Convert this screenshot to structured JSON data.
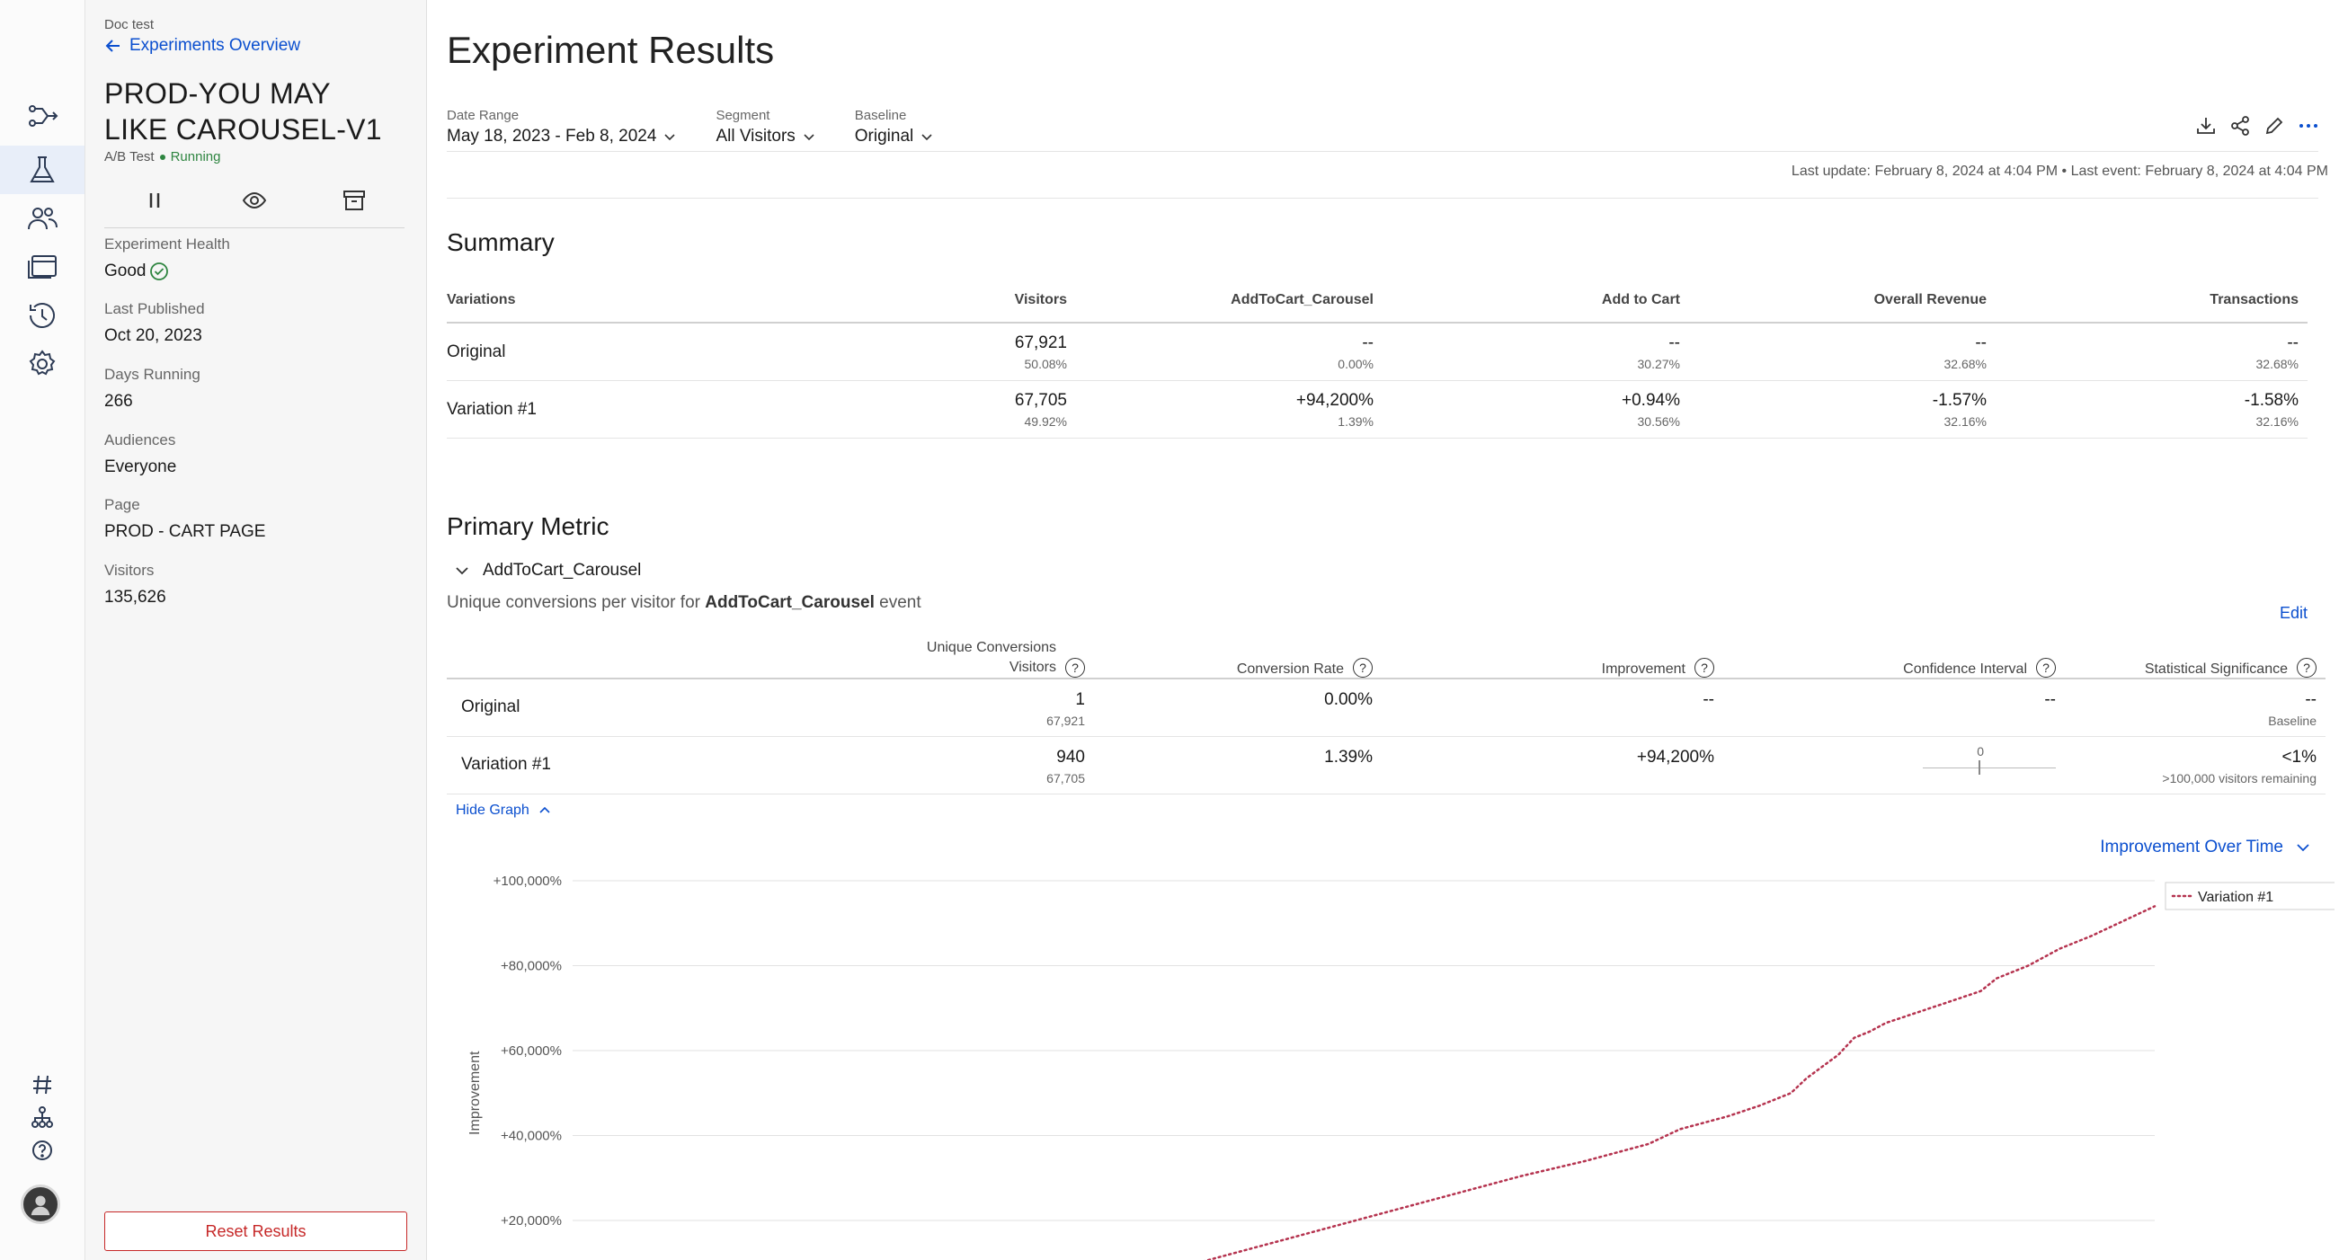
{
  "rail": {
    "icons": [
      "flow-icon",
      "flask-icon",
      "audiences-icon",
      "pages-icon",
      "history-icon",
      "settings-icon"
    ],
    "bottom_icons": [
      "hash-icon",
      "hierarchy-icon",
      "help-icon"
    ]
  },
  "sidebar": {
    "project": "Doc test",
    "back_link": "Experiments Overview",
    "experiment_name": "PROD-YOU MAY LIKE CAROUSEL-V1",
    "experiment_type": "A/B Test",
    "status": "Running",
    "health_label": "Experiment Health",
    "health_value": "Good",
    "last_published_label": "Last Published",
    "last_published_value": "Oct 20, 2023",
    "days_running_label": "Days Running",
    "days_running_value": "266",
    "audiences_label": "Audiences",
    "audiences_value": "Everyone",
    "page_label": "Page",
    "page_value": "PROD - CART PAGE",
    "visitors_label": "Visitors",
    "visitors_value": "135,626",
    "reset_button": "Reset Results"
  },
  "header": {
    "title": "Experiment Results",
    "date_range_label": "Date Range",
    "date_range_value": "May 18, 2023 - Feb 8, 2024",
    "segment_label": "Segment",
    "segment_value": "All Visitors",
    "baseline_label": "Baseline",
    "baseline_value": "Original",
    "last_update": "Last update: February 8, 2024 at 4:04 PM • Last event: February 8, 2024 at 4:04 PM"
  },
  "summary": {
    "title": "Summary",
    "columns": [
      "Variations",
      "Visitors",
      "AddToCart_Carousel",
      "Add to Cart",
      "Overall Revenue",
      "Transactions"
    ],
    "rows": [
      {
        "name": "Original",
        "cells": [
          {
            "main": "67,921",
            "sub": "50.08%"
          },
          {
            "main": "--",
            "sub": "0.00%"
          },
          {
            "main": "--",
            "sub": "30.27%"
          },
          {
            "main": "--",
            "sub": "32.68%"
          },
          {
            "main": "--",
            "sub": "32.68%"
          }
        ]
      },
      {
        "name": "Variation #1",
        "cells": [
          {
            "main": "67,705",
            "sub": "49.92%"
          },
          {
            "main": "+94,200%",
            "sub": "1.39%"
          },
          {
            "main": "+0.94%",
            "sub": "30.56%"
          },
          {
            "main": "-1.57%",
            "sub": "32.16%"
          },
          {
            "main": "-1.58%",
            "sub": "32.16%"
          }
        ]
      }
    ]
  },
  "primary_metric": {
    "title": "Primary Metric",
    "metric_name": "AddToCart_Carousel",
    "description_prefix": "Unique conversions per visitor for ",
    "description_event": "AddToCart_Carousel",
    "description_suffix": " event",
    "edit_label": "Edit",
    "col_conversions": "Unique Conversions",
    "col_visitors": "Visitors",
    "col_rate": "Conversion Rate",
    "col_improvement": "Improvement",
    "col_ci": "Confidence Interval",
    "col_sig": "Statistical Significance",
    "rows": [
      {
        "name": "Original",
        "conversions": "1",
        "visitors": "67,921",
        "rate": "0.00%",
        "improvement": "--",
        "ci": "--",
        "sig": "--",
        "sig_sub": "Baseline"
      },
      {
        "name": "Variation #1",
        "conversions": "940",
        "visitors": "67,705",
        "rate": "1.39%",
        "improvement": "+94,200%",
        "ci_zero": "0",
        "sig": "<1%",
        "sig_sub": ">100,000 visitors remaining"
      }
    ],
    "hide_graph": "Hide Graph",
    "graph_selector": "Improvement Over Time"
  },
  "chart_data": {
    "type": "line",
    "title": "",
    "xlabel": "",
    "ylabel": "Improvement",
    "ylim": [
      0,
      100000
    ],
    "y_ticks": [
      "+100,000%",
      "+80,000%",
      "+60,000%",
      "+40,000%",
      "+20,000%"
    ],
    "y_tick_values": [
      100000,
      80000,
      60000,
      40000,
      20000
    ],
    "legend_position": "top-right",
    "grid": true,
    "series": [
      {
        "name": "Variation #1",
        "color": "#b5334f",
        "style": "dotted",
        "points": [
          [
            0.3,
            0
          ],
          [
            0.35,
            5500
          ],
          [
            0.4,
            10500
          ],
          [
            0.45,
            15500
          ],
          [
            0.5,
            20500
          ],
          [
            0.55,
            25500
          ],
          [
            0.6,
            30500
          ],
          [
            0.64,
            34000
          ],
          [
            0.68,
            38000
          ],
          [
            0.7,
            41500
          ],
          [
            0.73,
            44500
          ],
          [
            0.75,
            47000
          ],
          [
            0.77,
            50000
          ],
          [
            0.78,
            53500
          ],
          [
            0.8,
            59000
          ],
          [
            0.81,
            63000
          ],
          [
            0.82,
            64500
          ],
          [
            0.83,
            66500
          ],
          [
            0.85,
            69000
          ],
          [
            0.87,
            71500
          ],
          [
            0.89,
            74000
          ],
          [
            0.9,
            77000
          ],
          [
            0.92,
            80000
          ],
          [
            0.94,
            84000
          ],
          [
            0.96,
            87000
          ],
          [
            0.98,
            90500
          ],
          [
            1.0,
            94000
          ]
        ]
      }
    ]
  }
}
